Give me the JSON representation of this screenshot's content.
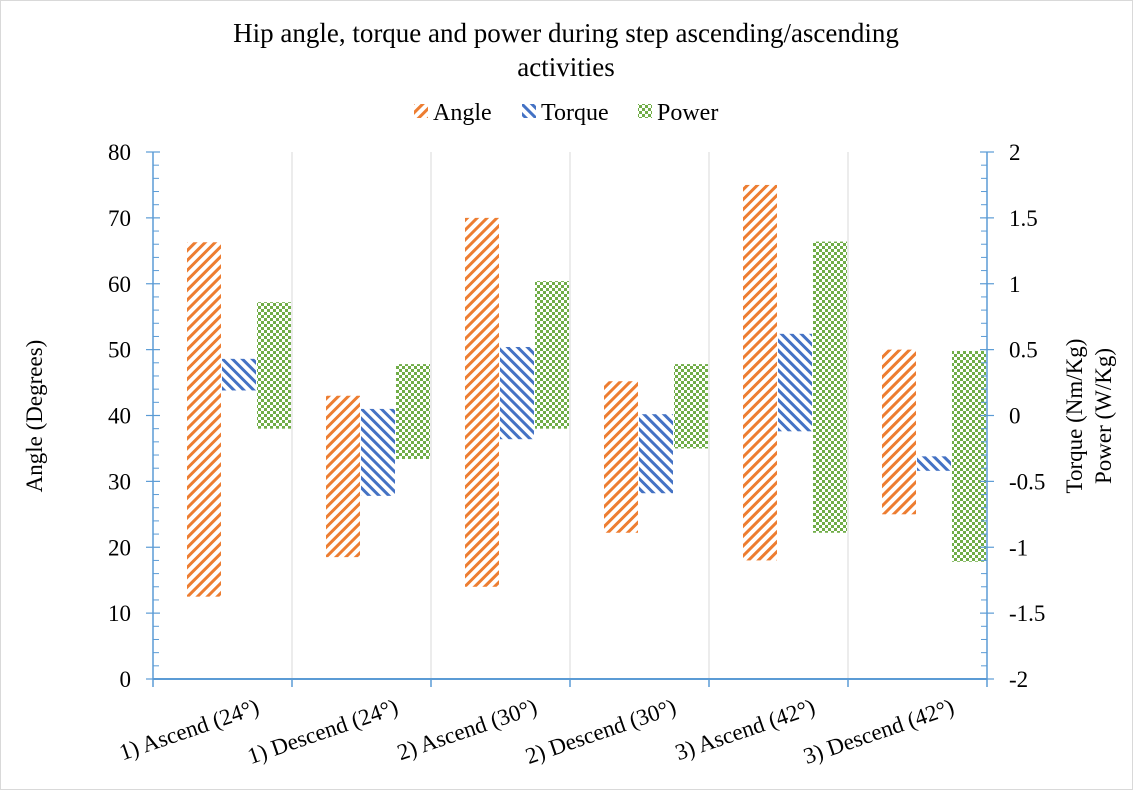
{
  "chart_data": {
    "type": "bar",
    "subtype": "floating-range",
    "title_lines": [
      "Hip  angle, torque and power during  step ascending/ascending",
      "activities"
    ],
    "categories": [
      "1) Ascend (24°)",
      "1) Descend (24°)",
      "2) Ascend (30°)",
      "2) Descend (30°)",
      "3) Ascend (42°)",
      "3) Descend (42°)"
    ],
    "series": [
      {
        "name": "Angle",
        "axis": "left",
        "pattern": "hatch-forward",
        "color": "#ED7D31",
        "ranges": [
          [
            12.5,
            66.3
          ],
          [
            18.5,
            43.0
          ],
          [
            14.0,
            70.0
          ],
          [
            22.2,
            45.2
          ],
          [
            18.0,
            75.0
          ],
          [
            25.0,
            50.0
          ]
        ]
      },
      {
        "name": "Torque",
        "axis": "right",
        "pattern": "hatch-back",
        "color": "#4472C4",
        "ranges": [
          [
            0.19,
            0.43
          ],
          [
            -0.61,
            0.05
          ],
          [
            -0.18,
            0.52
          ],
          [
            -0.59,
            0.01
          ],
          [
            -0.12,
            0.62
          ],
          [
            -0.42,
            -0.31
          ]
        ]
      },
      {
        "name": "Power",
        "axis": "right",
        "pattern": "checker",
        "color": "#70AD47",
        "ranges": [
          [
            -0.1,
            0.86
          ],
          [
            -0.33,
            0.39
          ],
          [
            -0.1,
            1.02
          ],
          [
            -0.25,
            0.39
          ],
          [
            -0.89,
            1.32
          ],
          [
            -1.11,
            0.49
          ]
        ]
      }
    ],
    "y_left": {
      "label": "Angle (Degrees)",
      "lim": [
        0,
        80
      ],
      "ticks": [
        "0",
        "10",
        "20",
        "30",
        "40",
        "50",
        "60",
        "70",
        "80"
      ]
    },
    "y_right": {
      "label_lines": [
        "Torque (Nm/Kg)",
        "Power (W/Kg)"
      ],
      "lim": [
        -2,
        2
      ],
      "ticks": [
        "-2",
        "-1.5",
        "-1",
        "-0.5",
        "0",
        "0.5",
        "1",
        "1.5",
        "2"
      ]
    },
    "legend_position": "top-center",
    "grid": {
      "vertical": true,
      "horizontal": false
    },
    "axis_color": "#5B9BD5",
    "grid_color": "#D9D9D9"
  }
}
